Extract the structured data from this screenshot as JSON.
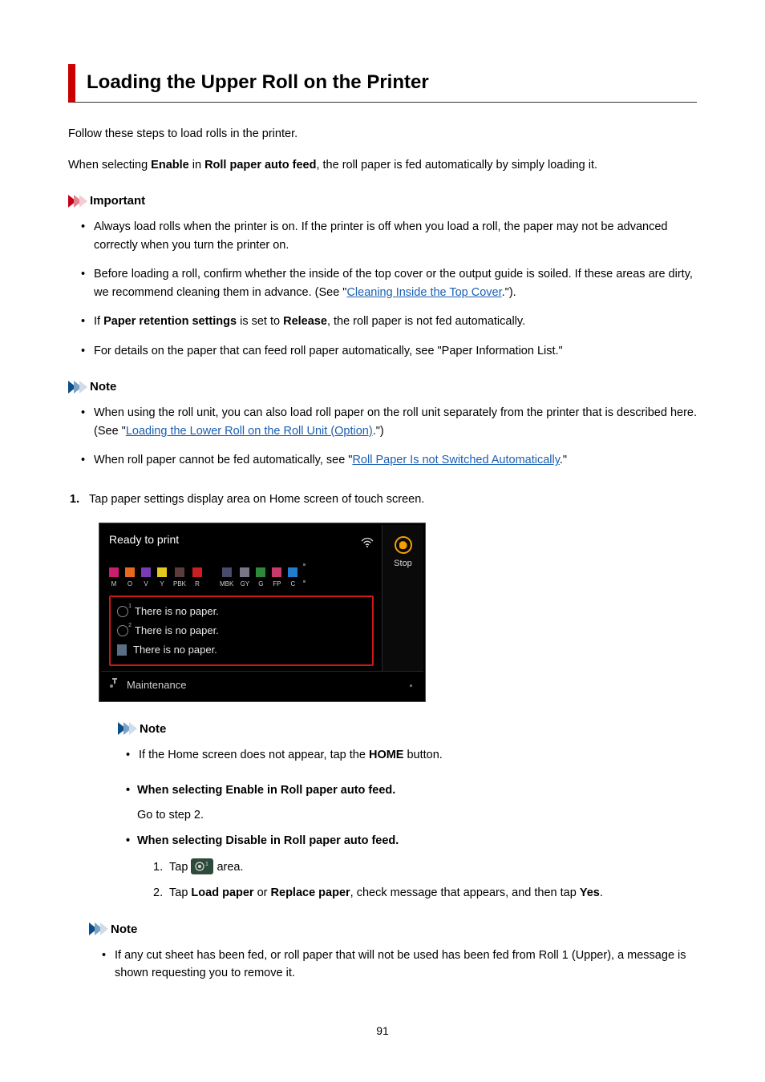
{
  "title": "Loading the Upper Roll on the Printer",
  "intro1": "Follow these steps to load rolls in the printer.",
  "intro2_pre": "When selecting ",
  "intro2_b1": "Enable",
  "intro2_mid": " in ",
  "intro2_b2": "Roll paper auto feed",
  "intro2_post": ", the roll paper is fed automatically by simply loading it.",
  "important_label": "Important",
  "important": {
    "i1": "Always load rolls when the printer is on. If the printer is off when you load a roll, the paper may not be advanced correctly when you turn the printer on.",
    "i2_pre": "Before loading a roll, confirm whether the inside of the top cover or the output guide is soiled. If these areas are dirty, we recommend cleaning them in advance. (See \"",
    "i2_link": "Cleaning Inside the Top Cover",
    "i2_post": ".\").",
    "i3_pre": "If ",
    "i3_b1": "Paper retention settings",
    "i3_mid": " is set to ",
    "i3_b2": "Release",
    "i3_post": ", the roll paper is not fed automatically.",
    "i4": "For details on the paper that can feed roll paper automatically, see \"Paper Information List.\""
  },
  "note_label": "Note",
  "note1": {
    "n1_pre": "When using the roll unit, you can also load roll paper on the roll unit separately from the printer that is described here. (See \"",
    "n1_link": "Loading the Lower Roll on the Roll Unit (Option)",
    "n1_post": ".\")",
    "n2_pre": "When roll paper cannot be fed automatically, see \"",
    "n2_link": "Roll Paper Is not Switched Automatically",
    "n2_post": ".\""
  },
  "step1_num": "1.",
  "step1_text": "Tap paper settings display area on Home screen of touch screen.",
  "screen": {
    "ready": "Ready to print",
    "inks": [
      {
        "label": "M",
        "color": "#c91f6c"
      },
      {
        "label": "O",
        "color": "#e56a1f"
      },
      {
        "label": "V",
        "color": "#7a3bb5"
      },
      {
        "label": "Y",
        "color": "#e5c81f"
      },
      {
        "label": "PBK",
        "color": "#5a3c3c"
      },
      {
        "label": "R",
        "color": "#cc1f1f"
      }
    ],
    "inks2": [
      {
        "label": "MBK",
        "color": "#4a4a6a"
      },
      {
        "label": "GY",
        "color": "#777788"
      },
      {
        "label": "G",
        "color": "#2e8a3a"
      },
      {
        "label": "FP",
        "color": "#c73b6a"
      },
      {
        "label": "C",
        "color": "#1f7fcc"
      }
    ],
    "paper1": "There is no paper.",
    "paper2": "There is no paper.",
    "paper3": "There is no paper.",
    "maintenance": "Maintenance",
    "stop": "Stop",
    "roll1_sup": "1",
    "roll2_sup": "2"
  },
  "note2": {
    "n1_pre": "If the Home screen does not appear, tap the ",
    "n1_b": "HOME",
    "n1_post": " button."
  },
  "sub": {
    "s1": "When selecting Enable in Roll paper auto feed.",
    "s1_desc": "Go to step 2.",
    "s2": "When selecting Disable in Roll paper auto feed.",
    "s2_1_num": "1.",
    "s2_1_pre": "Tap ",
    "s2_1_post": " area.",
    "s2_2_num": "2.",
    "s2_2_pre": "Tap ",
    "s2_2_b1": "Load paper",
    "s2_2_mid1": " or ",
    "s2_2_b2": "Replace paper",
    "s2_2_mid2": ", check message that appears, and then tap ",
    "s2_2_b3": "Yes",
    "s2_2_post": "."
  },
  "note3": {
    "n1": "If any cut sheet has been fed, or roll paper that will not be used has been fed from Roll 1 (Upper), a message is shown requesting you to remove it."
  },
  "page_number": "91"
}
